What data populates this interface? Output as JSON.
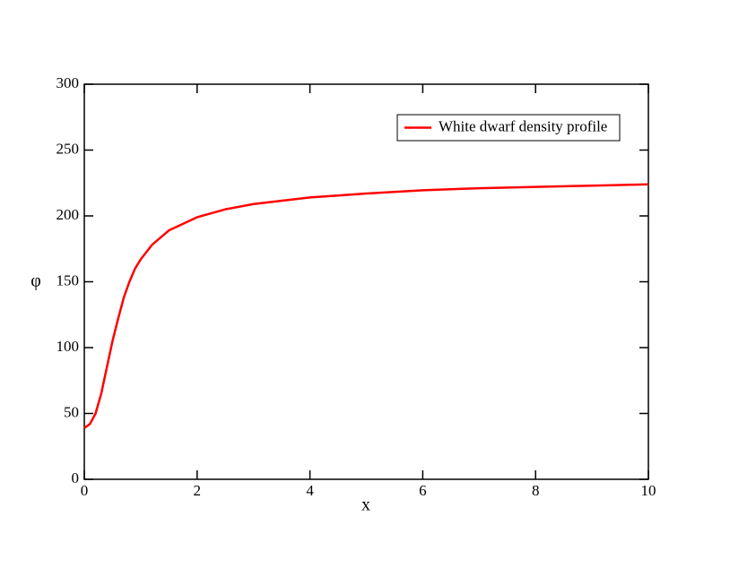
{
  "chart_data": {
    "type": "line",
    "xlabel": "x",
    "ylabel": "φ",
    "x": [
      0,
      0.1,
      0.2,
      0.3,
      0.4,
      0.5,
      0.6,
      0.7,
      0.8,
      0.9,
      1.0,
      1.2,
      1.5,
      2,
      2.5,
      3,
      4,
      5,
      6,
      7,
      8,
      9,
      10
    ],
    "series": [
      {
        "name": "White dwarf density profile",
        "color": "#ff0000",
        "values": [
          39,
          42,
          50,
          65,
          85,
          105,
          122,
          138,
          150,
          160,
          167,
          178,
          189,
          199,
          205,
          209,
          214,
          217,
          219.5,
          221,
          222,
          223,
          224
        ]
      }
    ],
    "xlim": [
      0,
      10
    ],
    "xticks": [
      0,
      2,
      4,
      6,
      8,
      10
    ],
    "ylim": [
      0,
      300
    ],
    "yticks": [
      0,
      50,
      100,
      150,
      200,
      250,
      300
    ],
    "legend": "upper-right",
    "grid": false
  }
}
